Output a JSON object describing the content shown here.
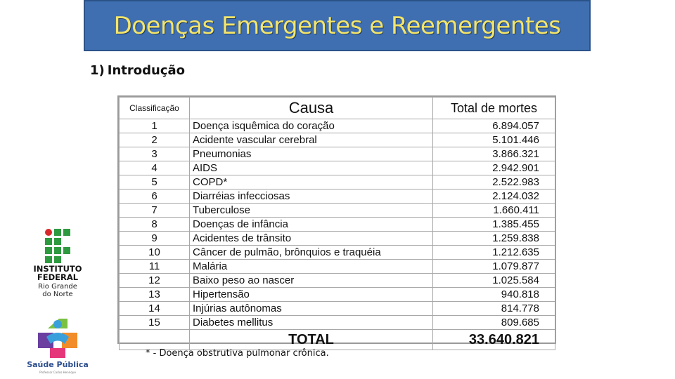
{
  "title": "Doenças Emergentes e Reemergentes",
  "section": {
    "number": "1)",
    "label": "Introdução"
  },
  "table": {
    "headers": {
      "rank": "Classificação",
      "cause": "Causa",
      "deaths": "Total de mortes"
    },
    "rows": [
      {
        "rank": "1",
        "cause": "Doença isquêmica do coração",
        "deaths": "6.894.057"
      },
      {
        "rank": "2",
        "cause": "Acidente vascular cerebral",
        "deaths": "5.101.446"
      },
      {
        "rank": "3",
        "cause": "Pneumonias",
        "deaths": "3.866.321"
      },
      {
        "rank": "4",
        "cause": "AIDS",
        "deaths": "2.942.901"
      },
      {
        "rank": "5",
        "cause": "COPD*",
        "deaths": "2.522.983"
      },
      {
        "rank": "6",
        "cause": "Diarréias infecciosas",
        "deaths": "2.124.032"
      },
      {
        "rank": "7",
        "cause": "Tuberculose",
        "deaths": "1.660.411"
      },
      {
        "rank": "8",
        "cause": "Doenças de infância",
        "deaths": "1.385.455"
      },
      {
        "rank": "9",
        "cause": "Acidentes de trânsito",
        "deaths": "1.259.838"
      },
      {
        "rank": "10",
        "cause": "Câncer de pulmão, brônquios e traquéia",
        "deaths": "1.212.635"
      },
      {
        "rank": "11",
        "cause": "Malária",
        "deaths": "1.079.877"
      },
      {
        "rank": "12",
        "cause": "Baixo peso ao nascer",
        "deaths": "1.025.584"
      },
      {
        "rank": "13",
        "cause": "Hipertensão",
        "deaths": "940.818"
      },
      {
        "rank": "14",
        "cause": "Injúrias autônomas",
        "deaths": "814.778"
      },
      {
        "rank": "15",
        "cause": "Diabetes mellitus",
        "deaths": "809.685"
      }
    ],
    "total": {
      "label": "TOTAL",
      "value": "33.640.821"
    }
  },
  "footnote": "* - Doença obstrutiva pulmonar crônica.",
  "logos": {
    "institute": {
      "line1": "INSTITUTO",
      "line2": "FEDERAL",
      "line3": "Rio Grande",
      "line4": "do Norte"
    },
    "public_health": {
      "name": "Saúde Pública",
      "tagline": "Professor Carlos Henrique"
    }
  },
  "colors": {
    "title_bg": "#3f6fb1",
    "title_text": "#f3e46a",
    "if_green": "#2e9a3f",
    "if_red": "#d8282b"
  }
}
